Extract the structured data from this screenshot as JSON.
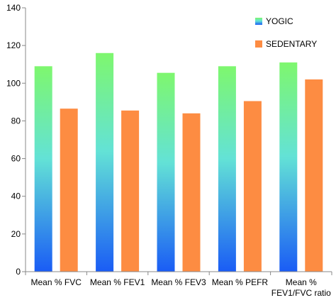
{
  "chart_data": {
    "type": "bar",
    "title": "",
    "xlabel": "",
    "ylabel": "",
    "ylim": [
      0,
      140
    ],
    "yticks": [
      0,
      20,
      40,
      60,
      80,
      100,
      120,
      140
    ],
    "grid": false,
    "legend_position": "top-right",
    "categories": [
      [
        "Mean % FVC"
      ],
      [
        "Mean % FEV1"
      ],
      [
        "Mean % FEV3"
      ],
      [
        "Mean % PEFR"
      ],
      [
        "Mean %",
        "FEV1/FVC ratio"
      ]
    ],
    "series": [
      {
        "name": "YOGIC",
        "values": [
          109,
          116,
          105.5,
          109,
          111
        ],
        "gradient": [
          "#7ef76e",
          "#1a5cf5"
        ]
      },
      {
        "name": "SEDENTARY",
        "values": [
          86.5,
          85.5,
          84,
          90.5,
          102
        ],
        "color": "#fd8c42"
      }
    ]
  }
}
